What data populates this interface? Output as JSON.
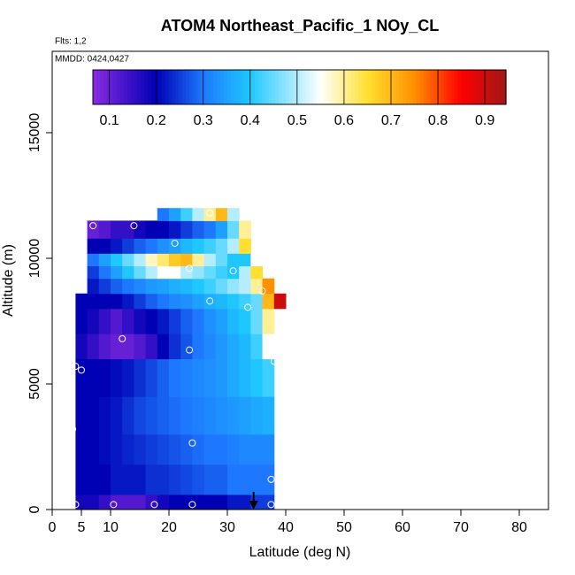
{
  "chart_data": {
    "type": "curtain",
    "title": "ATOM4 Northeast_Pacific_1 NOy_CL",
    "flights": "Flts: 1,2",
    "dates": "MMDD: 0424,0427",
    "x_label": "Latitude (deg N)",
    "y_label": "Altitude (m)",
    "xlim": [
      0,
      85
    ],
    "ylim": [
      0,
      18240
    ],
    "xticks": [
      0,
      5,
      10,
      20,
      30,
      40,
      50,
      60,
      70,
      80
    ],
    "yticks": [
      0,
      5000,
      10000,
      15000
    ],
    "colorbar_lim": [
      0.065,
      0.945
    ],
    "colorbar_ticks": [
      0.1,
      0.2,
      0.3,
      0.4,
      0.5,
      0.6,
      0.7,
      0.8,
      0.9
    ],
    "colormap": [
      [
        0.065,
        "#8a2be2"
      ],
      [
        0.2,
        "#0000b4"
      ],
      [
        0.3,
        "#1e78ff"
      ],
      [
        0.4,
        "#1ec8ff"
      ],
      [
        0.55,
        "#ffffff"
      ],
      [
        0.65,
        "#ffe030"
      ],
      [
        0.75,
        "#ff9000"
      ],
      [
        0.85,
        "#ff0000"
      ],
      [
        0.945,
        "#a01818"
      ]
    ],
    "lat_step": 2,
    "rows": [
      {
        "alt": [
          0,
          600
        ],
        "lat0": 4,
        "values": [
          0.18,
          0.18,
          0.15,
          0.12,
          0.12,
          0.12,
          0.15,
          0.18,
          0.2,
          0.2,
          0.2,
          0.2,
          0.2,
          0.22,
          0.22,
          0.25,
          0.25
        ]
      },
      {
        "alt": [
          600,
          1800
        ],
        "lat0": 4,
        "values": [
          0.2,
          0.2,
          0.2,
          0.22,
          0.22,
          0.22,
          0.24,
          0.24,
          0.25,
          0.26,
          0.27,
          0.28,
          0.28,
          0.3,
          0.3,
          0.3,
          0.3
        ]
      },
      {
        "alt": [
          1800,
          3000
        ],
        "lat0": 4,
        "values": [
          0.2,
          0.2,
          0.21,
          0.22,
          0.23,
          0.24,
          0.25,
          0.26,
          0.27,
          0.28,
          0.29,
          0.3,
          0.3,
          0.31,
          0.32,
          0.32,
          0.32
        ]
      },
      {
        "alt": [
          3000,
          4500
        ],
        "lat0": 4,
        "values": [
          0.2,
          0.2,
          0.21,
          0.22,
          0.24,
          0.26,
          0.27,
          0.28,
          0.29,
          0.3,
          0.31,
          0.32,
          0.33,
          0.34,
          0.35,
          0.36,
          0.37
        ]
      },
      {
        "alt": [
          4500,
          6000
        ],
        "lat0": 4,
        "values": [
          0.2,
          0.2,
          0.2,
          0.21,
          0.22,
          0.24,
          0.26,
          0.28,
          0.3,
          0.31,
          0.32,
          0.33,
          0.34,
          0.36,
          0.38,
          0.4,
          0.42
        ]
      },
      {
        "alt": [
          6000,
          7000
        ],
        "lat0": 4,
        "values": [
          0.18,
          0.15,
          0.12,
          0.1,
          0.1,
          0.12,
          0.15,
          0.2,
          0.24,
          0.27,
          0.3,
          0.32,
          0.34,
          0.36,
          0.38,
          0.42,
          0.55
        ]
      },
      {
        "alt": [
          7000,
          8000
        ],
        "lat0": 4,
        "values": [
          0.2,
          0.18,
          0.15,
          0.12,
          0.15,
          0.18,
          0.2,
          0.22,
          0.25,
          0.28,
          0.3,
          0.33,
          0.35,
          0.38,
          0.4,
          0.45,
          0.6
        ]
      },
      {
        "alt": [
          8000,
          8600
        ],
        "lat0": 4,
        "values": [
          0.2,
          0.2,
          0.2,
          0.2,
          0.22,
          0.25,
          0.28,
          0.3,
          0.32,
          0.33,
          0.35,
          0.37,
          0.38,
          0.4,
          0.42,
          0.45,
          0.7,
          0.9
        ]
      },
      {
        "alt": [
          8600,
          9200
        ],
        "lat0": 6,
        "values": [
          0.22,
          0.25,
          0.28,
          0.3,
          0.32,
          0.34,
          0.35,
          0.37,
          0.38,
          0.4,
          0.42,
          0.45,
          0.48,
          0.5,
          0.6,
          0.75
        ]
      },
      {
        "alt": [
          9200,
          9700
        ],
        "lat0": 6,
        "values": [
          0.25,
          0.3,
          0.35,
          0.4,
          0.45,
          0.5,
          0.55,
          0.55,
          0.5,
          0.48,
          0.45,
          0.42,
          0.4,
          0.5,
          0.65
        ]
      },
      {
        "alt": [
          9700,
          10200
        ],
        "lat0": 6,
        "values": [
          0.3,
          0.35,
          0.4,
          0.45,
          0.5,
          0.58,
          0.62,
          0.68,
          0.7,
          0.6,
          0.5,
          0.45,
          0.4,
          0.4,
          0.55
        ]
      },
      {
        "alt": [
          10200,
          10800
        ],
        "lat0": 6,
        "values": [
          0.2,
          0.2,
          0.22,
          0.25,
          0.28,
          0.3,
          0.33,
          0.35,
          0.38,
          0.4,
          0.42,
          0.45,
          0.5,
          0.65
        ]
      },
      {
        "alt": [
          10800,
          11500
        ],
        "lat0": 6,
        "values": [
          0.1,
          0.12,
          0.15,
          0.15,
          0.18,
          0.2,
          0.2,
          0.22,
          0.25,
          0.28,
          0.3,
          0.35,
          0.45,
          0.6
        ]
      },
      {
        "alt": [
          11500,
          12000
        ],
        "lat0": 18,
        "values": [
          0.3,
          0.35,
          0.42,
          0.5,
          0.6,
          0.7,
          0.5
        ]
      }
    ],
    "samples": {
      "x": [
        7,
        14,
        21,
        5,
        23.5,
        31,
        36,
        27,
        33.5,
        12,
        23.5,
        4,
        5,
        38,
        24,
        3.5,
        4,
        10.5,
        17.5,
        24,
        37.5,
        37.5,
        27
      ],
      "y": [
        11300,
        11300,
        10600,
        9850,
        9600,
        9500,
        8700,
        8300,
        8050,
        6800,
        6350,
        5700,
        5550,
        5900,
        2650,
        3200,
        200,
        200,
        200,
        200,
        200,
        1200,
        11800
      ]
    },
    "arrow_lat": 34.5
  }
}
